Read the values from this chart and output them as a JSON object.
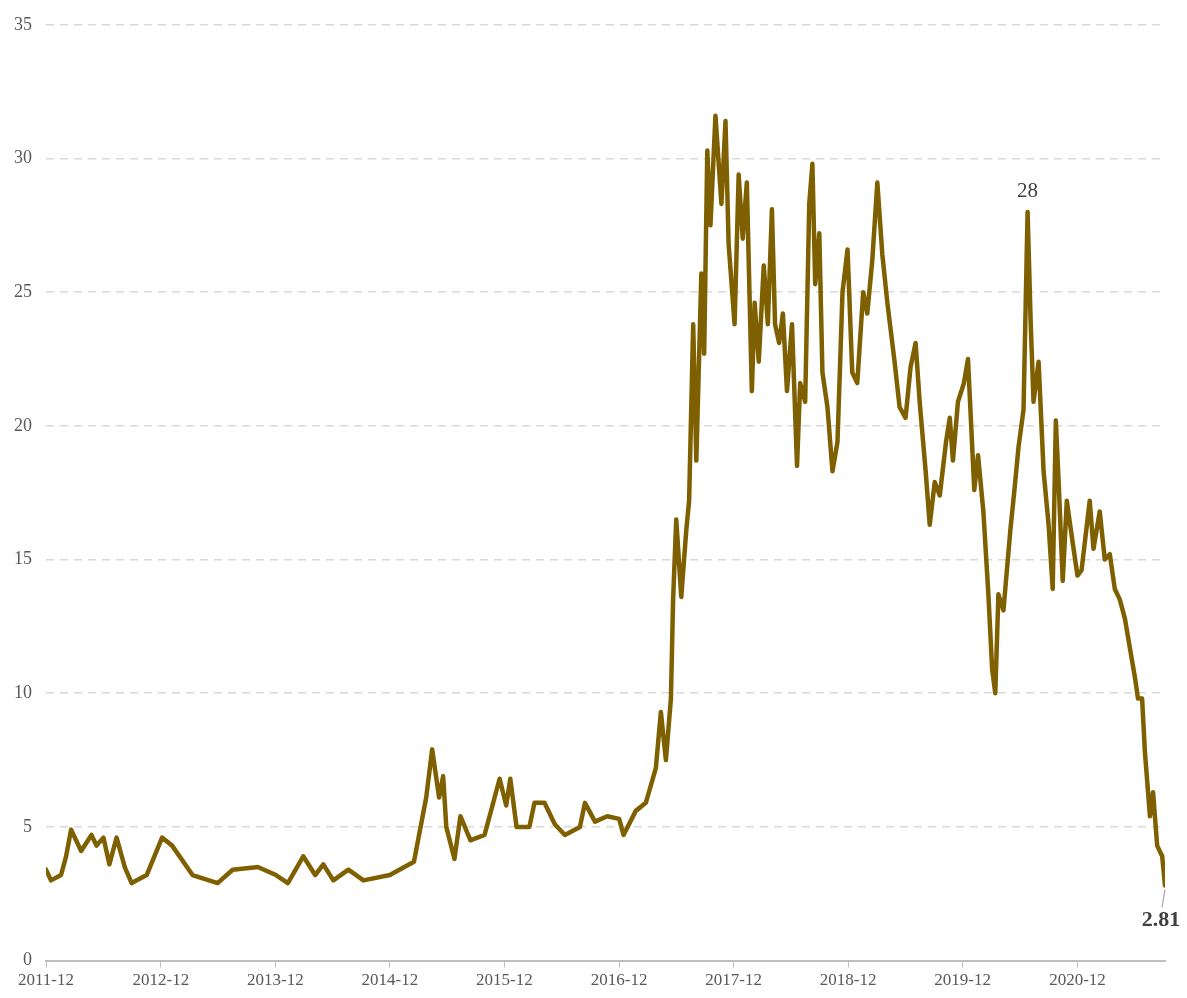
{
  "chart_data": {
    "type": "line",
    "x": [
      "2011-12-01",
      "2011-12-17",
      "2012-01-18",
      "2012-02-03",
      "2012-02-19",
      "2012-03-22",
      "2012-04-24",
      "2012-05-10",
      "2012-06-01",
      "2012-06-20",
      "2012-07-13",
      "2012-08-08",
      "2012-08-30",
      "2012-10-17",
      "2012-12-05",
      "2013-01-06",
      "2013-03-12",
      "2013-05-31",
      "2013-07-18",
      "2013-10-06",
      "2013-12-03",
      "2014-01-10",
      "2014-02-28",
      "2014-04-07",
      "2014-05-03",
      "2014-06-04",
      "2014-07-22",
      "2014-09-08",
      "2014-12-01",
      "2015-02-16",
      "2015-03-27",
      "2015-04-15",
      "2015-05-07",
      "2015-05-20",
      "2015-05-30",
      "2015-06-25",
      "2015-07-14",
      "2015-08-15",
      "2015-09-29",
      "2015-10-31",
      "2015-11-16",
      "2015-12-07",
      "2015-12-20",
      "2016-01-09",
      "2016-02-19",
      "2016-03-06",
      "2016-04-07",
      "2016-05-10",
      "2016-06-11",
      "2016-07-29",
      "2016-08-14",
      "2016-09-15",
      "2016-10-24",
      "2016-12-01",
      "2016-12-15",
      "2017-01-23",
      "2017-02-24",
      "2017-03-28",
      "2017-04-13",
      "2017-04-29",
      "2017-05-15",
      "2017-05-22",
      "2017-06-01",
      "2017-06-17",
      "2017-07-03",
      "2017-07-12",
      "2017-07-25",
      "2017-08-04",
      "2017-08-20",
      "2017-08-29",
      "2017-09-08",
      "2017-09-18",
      "2017-10-04",
      "2017-10-23",
      "2017-11-05",
      "2017-11-15",
      "2017-12-04",
      "2017-12-17",
      "2017-12-30",
      "2018-01-12",
      "2018-01-28",
      "2018-02-06",
      "2018-02-19",
      "2018-03-07",
      "2018-03-20",
      "2018-04-02",
      "2018-04-12",
      "2018-04-25",
      "2018-05-07",
      "2018-05-20",
      "2018-06-05",
      "2018-06-21",
      "2018-07-01",
      "2018-07-17",
      "2018-07-30",
      "2018-08-09",
      "2018-08-18",
      "2018-08-31",
      "2018-09-10",
      "2018-09-26",
      "2018-10-12",
      "2018-10-28",
      "2018-11-13",
      "2018-11-29",
      "2018-12-14",
      "2018-12-30",
      "2019-01-18",
      "2019-01-31",
      "2019-02-16",
      "2019-03-04",
      "2019-03-20",
      "2019-04-05",
      "2019-04-28",
      "2019-05-14",
      "2019-06-02",
      "2019-06-18",
      "2019-07-04",
      "2019-07-17",
      "2019-08-05",
      "2019-08-18",
      "2019-09-03",
      "2019-09-19",
      "2019-10-09",
      "2019-10-21",
      "2019-10-31",
      "2019-11-16",
      "2019-12-05",
      "2019-12-18",
      "2020-01-07",
      "2020-01-19",
      "2020-02-05",
      "2020-02-21",
      "2020-03-04",
      "2020-03-14",
      "2020-03-24",
      "2020-04-09",
      "2020-05-01",
      "2020-05-14",
      "2020-05-27",
      "2020-06-12",
      "2020-06-25",
      "2020-07-05",
      "2020-07-14",
      "2020-07-30",
      "2020-08-15",
      "2020-08-31",
      "2020-09-13",
      "2020-09-23",
      "2020-10-02",
      "2020-10-15",
      "2020-10-28",
      "2020-11-10",
      "2020-12-01",
      "2020-12-14",
      "2021-01-09",
      "2021-01-21",
      "2021-02-10",
      "2021-02-26",
      "2021-03-14",
      "2021-03-30",
      "2021-04-15",
      "2021-05-01",
      "2021-05-17",
      "2021-06-02",
      "2021-06-12",
      "2021-06-25",
      "2021-07-04",
      "2021-07-20",
      "2021-07-30",
      "2021-08-12",
      "2021-08-28",
      "2021-09-06"
    ],
    "series": [
      {
        "color": "#7f6000",
        "values": [
          3.4,
          3.0,
          3.2,
          3.9,
          4.9,
          4.1,
          4.7,
          4.3,
          4.6,
          3.6,
          4.6,
          3.5,
          2.9,
          3.2,
          4.6,
          4.3,
          3.2,
          2.9,
          3.4,
          3.5,
          3.2,
          2.9,
          3.9,
          3.2,
          3.6,
          3.0,
          3.4,
          3.0,
          3.2,
          3.7,
          6.1,
          7.9,
          6.1,
          6.9,
          5.0,
          3.8,
          5.4,
          4.5,
          4.7,
          6.1,
          6.8,
          5.8,
          6.8,
          5.0,
          5.0,
          5.9,
          5.9,
          5.1,
          4.7,
          5.0,
          5.9,
          5.2,
          5.4,
          5.3,
          4.7,
          5.6,
          5.9,
          7.2,
          9.3,
          7.5,
          9.8,
          13.5,
          16.5,
          13.6,
          16.1,
          17.2,
          23.8,
          18.7,
          25.7,
          22.7,
          30.3,
          27.5,
          31.6,
          28.3,
          31.4,
          26.8,
          23.8,
          29.4,
          27.0,
          29.1,
          21.3,
          24.6,
          22.4,
          26.0,
          23.8,
          28.1,
          23.8,
          23.1,
          24.2,
          21.3,
          23.8,
          18.5,
          21.6,
          20.9,
          28.3,
          29.8,
          25.3,
          27.2,
          22.0,
          20.7,
          18.3,
          19.4,
          25.0,
          26.6,
          22.0,
          21.6,
          25.0,
          24.2,
          26.2,
          29.1,
          26.4,
          24.6,
          22.4,
          20.7,
          20.3,
          22.2,
          23.1,
          20.9,
          18.3,
          16.3,
          17.9,
          17.4,
          19.4,
          20.3,
          18.7,
          20.9,
          21.6,
          22.5,
          17.6,
          18.9,
          16.8,
          13.7,
          10.9,
          10.0,
          13.7,
          13.1,
          16.1,
          17.6,
          19.2,
          20.6,
          28.0,
          23.8,
          20.9,
          22.4,
          18.3,
          16.3,
          13.9,
          20.2,
          17.9,
          14.2,
          17.2,
          16.1,
          14.4,
          14.6,
          17.2,
          15.4,
          16.8,
          15.0,
          15.2,
          13.9,
          13.5,
          12.8,
          11.7,
          10.6,
          9.8,
          9.8,
          7.8,
          5.4,
          6.3,
          4.3,
          3.9,
          2.81
        ]
      }
    ],
    "xlim": [
      "2011-12",
      "2021-09-06"
    ],
    "xticks": [
      "2011-12",
      "2012-12",
      "2013-12",
      "2014-12",
      "2015-12",
      "2016-12",
      "2017-12",
      "2018-12",
      "2019-12",
      "2020-12"
    ],
    "ylim": [
      0,
      35
    ],
    "yticks": [
      0,
      5,
      10,
      15,
      20,
      25,
      30,
      35
    ],
    "grid": "y",
    "legend": false,
    "marker": "none",
    "line_style": "solid",
    "annotations": [
      {
        "text": "28",
        "x": "2020-06-25",
        "y": 28
      },
      {
        "text": "2.81",
        "x": "2021-09-06",
        "y": 2.81
      }
    ]
  }
}
